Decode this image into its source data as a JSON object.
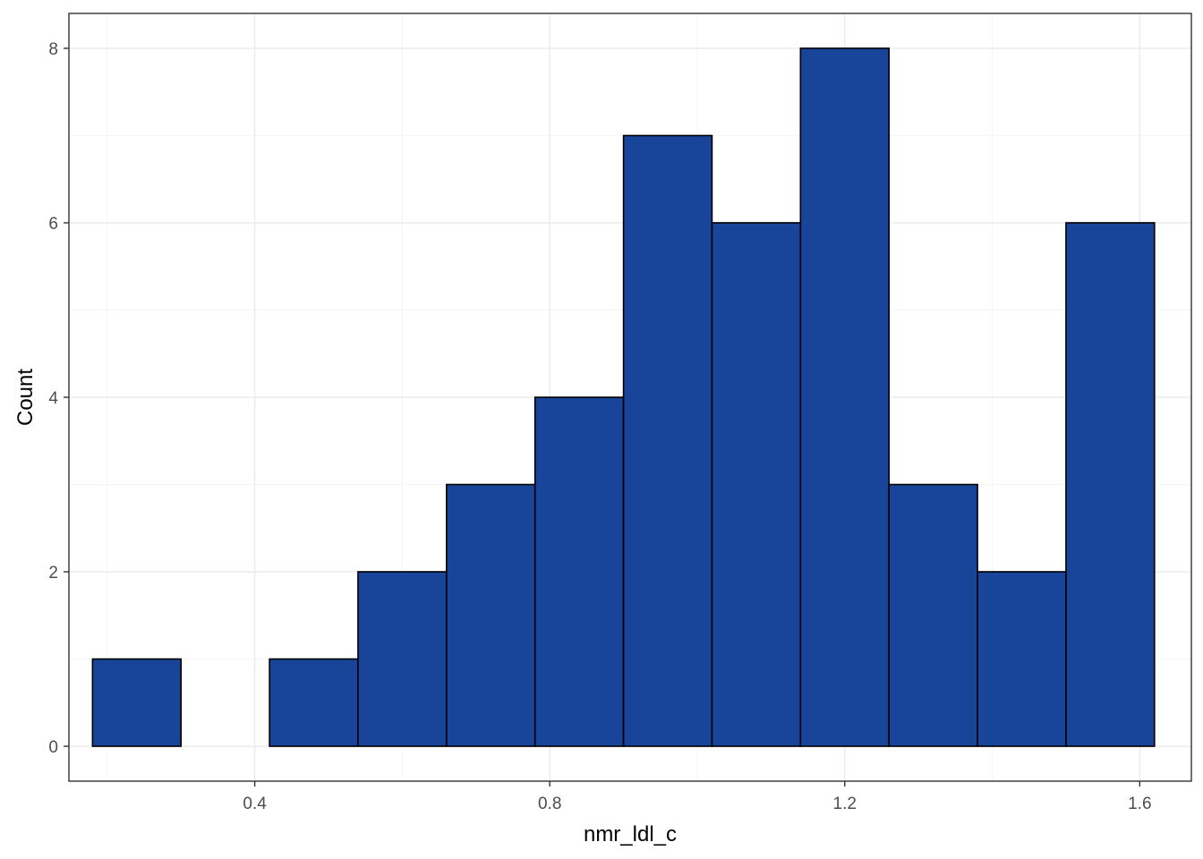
{
  "chart_data": {
    "type": "bar",
    "subtype": "histogram",
    "xlabel": "nmr_ldl_c",
    "ylabel": "Count",
    "xlim": [
      0.148,
      1.67
    ],
    "ylim": [
      -0.4,
      8.4
    ],
    "x_ticks": [
      0.4,
      0.8,
      1.2,
      1.6
    ],
    "x_tick_labels": [
      "0.4",
      "0.8",
      "1.2",
      "1.6"
    ],
    "y_ticks": [
      0,
      2,
      4,
      6,
      8
    ],
    "y_tick_labels": [
      "0",
      "2",
      "4",
      "6",
      "8"
    ],
    "bin_edges": [
      0.18,
      0.3,
      0.42,
      0.54,
      0.66,
      0.78,
      0.9,
      1.02,
      1.14,
      1.26,
      1.38,
      1.5,
      1.62
    ],
    "counts": [
      1,
      0,
      1,
      2,
      3,
      4,
      7,
      6,
      8,
      3,
      2,
      6
    ],
    "grid": true,
    "colors": {
      "bar_fill": "#18449a",
      "bar_stroke": "#000000",
      "grid_major": "#ebebeb",
      "grid_minor": "#f5f5f5",
      "panel_border": "#333333"
    }
  }
}
